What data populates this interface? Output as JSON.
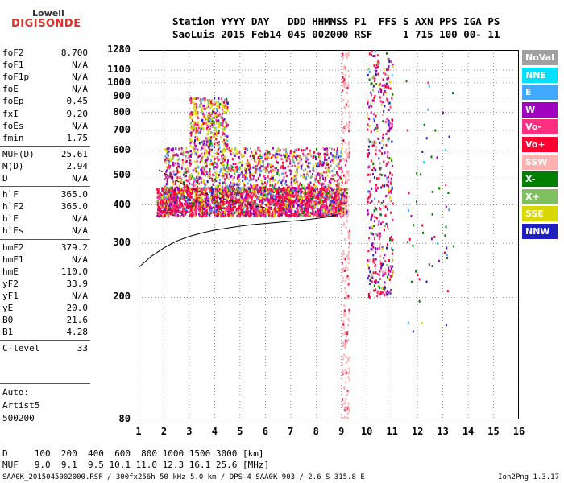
{
  "logo": {
    "top": "Lowell",
    "main_a": "DIGI",
    "main_b": "SONDE"
  },
  "header": {
    "line1": "Station YYYY DAY   DDD HHMMSS P1  FFS S AXN PPS IGA PS",
    "line2": "SaoLuis 2015 Feb14 045 002000 RSF     1 715 100 00- 11"
  },
  "params": [
    {
      "key": "foF2",
      "val": "8.700"
    },
    {
      "key": "foF1",
      "val": "N/A"
    },
    {
      "key": "foF1p",
      "val": "N/A"
    },
    {
      "key": "foE",
      "val": "N/A"
    },
    {
      "key": "foEp",
      "val": "0.45"
    },
    {
      "key": "fxI",
      "val": "9.20"
    },
    {
      "key": "foEs",
      "val": "N/A"
    },
    {
      "key": "fmin",
      "val": "1.75"
    },
    {
      "key": "MUF(D)",
      "val": "25.61"
    },
    {
      "key": "M(D)",
      "val": "2.94"
    },
    {
      "key": "D",
      "val": "N/A"
    },
    {
      "key": "h`F",
      "val": "365.0"
    },
    {
      "key": "h`F2",
      "val": "365.0"
    },
    {
      "key": "h`E",
      "val": "N/A"
    },
    {
      "key": "h`Es",
      "val": "N/A"
    },
    {
      "key": "hmF2",
      "val": "379.2"
    },
    {
      "key": "hmF1",
      "val": "N/A"
    },
    {
      "key": "hmE",
      "val": "110.0"
    },
    {
      "key": "yF2",
      "val": "33.9"
    },
    {
      "key": "yF1",
      "val": "N/A"
    },
    {
      "key": "yE",
      "val": "20.0"
    },
    {
      "key": "B0",
      "val": "21.6"
    },
    {
      "key": "B1",
      "val": "4.28"
    },
    {
      "key": "C-level",
      "val": "33"
    }
  ],
  "auto": {
    "line1": "Auto:",
    "line2": "Artist5",
    "line3": "500200"
  },
  "legend": [
    {
      "label": "NoVal",
      "color": "#a0a0a0"
    },
    {
      "label": "NNE",
      "color": "#00e0ff"
    },
    {
      "label": "E",
      "color": "#40a8ff"
    },
    {
      "label": "W",
      "color": "#a000c0"
    },
    {
      "label": "Vo-",
      "color": "#ff3080"
    },
    {
      "label": "Vo+",
      "color": "#ff0030"
    },
    {
      "label": "SSW",
      "color": "#ffb0b0"
    },
    {
      "label": "X-",
      "color": "#008000"
    },
    {
      "label": "X+",
      "color": "#80c060"
    },
    {
      "label": "SSE",
      "color": "#d8d800"
    },
    {
      "label": "NNW",
      "color": "#2020c0"
    }
  ],
  "footer": {
    "row1": "D     100  200  400  600  800 1000 1500 3000 [km]",
    "row2": "MUF   9.0  9.1  9.5 10.1 11.0 12.3 16.1 25.6 [MHz]",
    "file": "SAA0K_2015045002000.RSF / 300fx256h 50 kHz 5.0 km / DPS-4 SAA0K 903 / 2.6 S 315.8 E",
    "version": "Ion2Png 1.3.17"
  },
  "chart_data": {
    "type": "scatter",
    "title": "",
    "xlabel": "",
    "ylabel": "",
    "xlim": [
      1,
      16
    ],
    "ylim": [
      80,
      1280
    ],
    "yscale": "log",
    "x_ticks": [
      "1",
      "2",
      "3",
      "4",
      "5",
      "6",
      "7",
      "8",
      "9",
      "10",
      "11",
      "12",
      "13",
      "14",
      "15",
      "16"
    ],
    "y_ticks": [
      "80",
      "200",
      "300",
      "400",
      "500",
      "600",
      "700",
      "800",
      "900",
      "1000",
      "1100",
      "1280"
    ],
    "grid": "dotted",
    "legend_position": "right",
    "profile_curve": {
      "x": [
        1.0,
        1.5,
        2.0,
        2.5,
        3.0,
        3.5,
        4.0,
        4.5,
        5.0,
        5.5,
        6.0,
        6.5,
        7.0,
        7.5,
        8.0,
        8.5,
        8.8
      ],
      "y": [
        250,
        272,
        290,
        305,
        316,
        324,
        331,
        336,
        341,
        345,
        348,
        351,
        354,
        357,
        361,
        366,
        372
      ]
    },
    "trace_curve": {
      "x": [
        1.8,
        2.5,
        3.0,
        3.5,
        4.0,
        4.5,
        5.0,
        5.5,
        6.0
      ],
      "y": [
        520,
        480,
        455,
        440,
        425,
        415,
        405,
        398,
        392
      ]
    }
  }
}
